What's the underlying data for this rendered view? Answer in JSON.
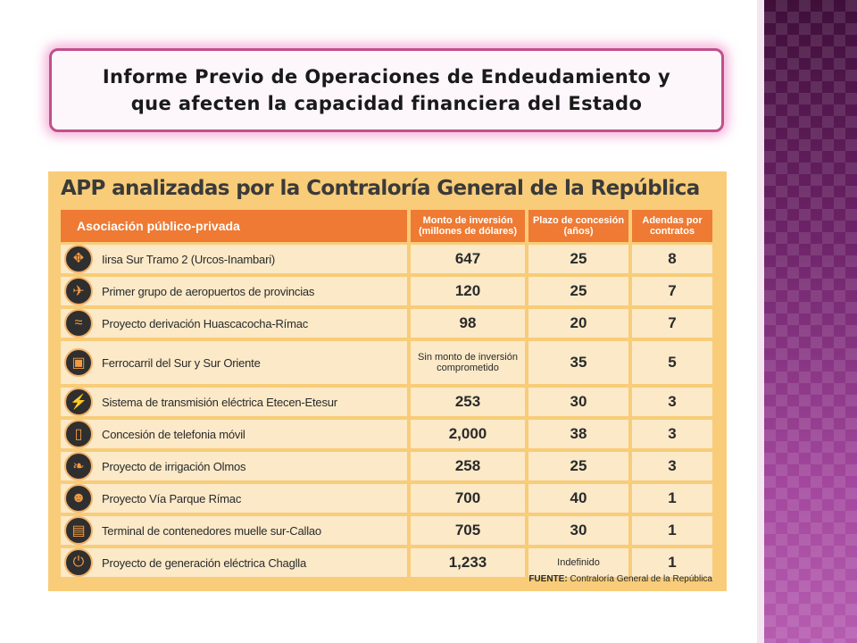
{
  "slide": {
    "title_line1": "Informe Previo de Operaciones de Endeudamiento y",
    "title_line2": "que afecten la capacidad financiera del Estado"
  },
  "infographic": {
    "title": "APP analizadas por la Contraloría General de la República",
    "headers": {
      "app": "Asociación público-privada",
      "monto": "Monto de inversión (millones de dólares)",
      "plazo": "Plazo de concesión (años)",
      "adendas": "Adendas por contratos"
    },
    "rows": [
      {
        "name": "Iirsa Sur Tramo 2 (Urcos-Inambari)",
        "monto": "647",
        "plazo": "25",
        "adendas": "8",
        "icon": "road-icon"
      },
      {
        "name": "Primer grupo de aeropuertos de provincias",
        "monto": "120",
        "plazo": "25",
        "adendas": "7",
        "icon": "airplane-icon"
      },
      {
        "name": "Proyecto derivación Huascacocha-Rímac",
        "monto": "98",
        "plazo": "20",
        "adendas": "7",
        "icon": "water-icon"
      },
      {
        "name": "Ferrocarril del Sur y Sur Oriente",
        "monto": "Sin monto de inversión comprometido",
        "plazo": "35",
        "adendas": "5",
        "icon": "train-icon"
      },
      {
        "name": "Sistema de transmisión eléctrica Etecen-Etesur",
        "monto": "253",
        "plazo": "30",
        "adendas": "3",
        "icon": "tower-icon"
      },
      {
        "name": "Concesión de telefonia móvil",
        "monto": "2,000",
        "plazo": "38",
        "adendas": "3",
        "icon": "phone-icon"
      },
      {
        "name": "Proyecto de irrigación Olmos",
        "monto": "258",
        "plazo": "25",
        "adendas": "3",
        "icon": "leaf-icon"
      },
      {
        "name": "Proyecto Vía Parque Rímac",
        "monto": "700",
        "plazo": "40",
        "adendas": "1",
        "icon": "worker-icon"
      },
      {
        "name": "Terminal de contenedores muelle sur-Callao",
        "monto": "705",
        "plazo": "30",
        "adendas": "1",
        "icon": "container-icon"
      },
      {
        "name": "Proyecto de generación eléctrica Chaglla",
        "monto": "1,233",
        "plazo": "Indefinido",
        "adendas": "1",
        "icon": "power-icon"
      }
    ],
    "source_label": "FUENTE:",
    "source_text": "Contraloría General de la República"
  },
  "colors": {
    "header_orange": "#ee7a33",
    "background_yellow": "#f8cc78",
    "cell_cream": "#fbe9c8",
    "title_border": "#c0508c",
    "band_purple": "#7a2a74"
  }
}
